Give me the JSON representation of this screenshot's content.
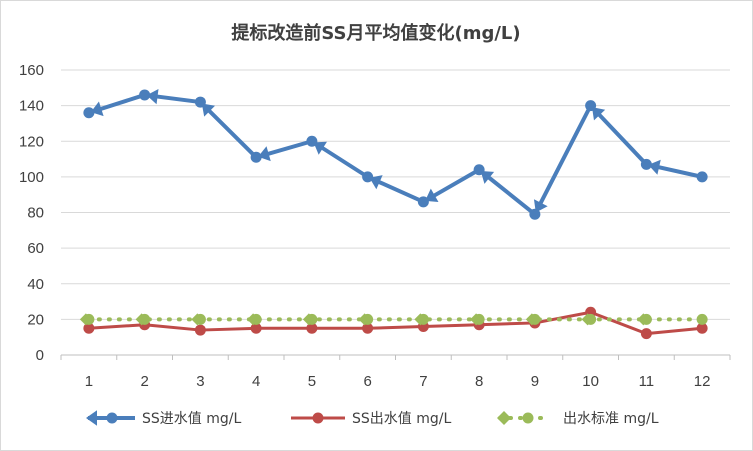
{
  "chart_data": {
    "type": "line",
    "title": "提标改造前SS月平均值变化(mg/L)",
    "xlabel": "",
    "ylabel": "",
    "categories": [
      "1",
      "2",
      "3",
      "4",
      "5",
      "6",
      "7",
      "8",
      "9",
      "10",
      "11",
      "12"
    ],
    "ylim": [
      0,
      160
    ],
    "yticks": [
      0,
      20,
      40,
      60,
      80,
      100,
      120,
      140,
      160
    ],
    "grid": true,
    "legend_position": "bottom",
    "series": [
      {
        "name": "SS进水值 mg/L",
        "color": "#4a7ebb",
        "values": [
          136,
          146,
          142,
          111,
          120,
          100,
          86,
          104,
          79,
          140,
          107,
          100
        ]
      },
      {
        "name": "SS出水值 mg/L",
        "color": "#be4b48",
        "values": [
          15,
          17,
          14,
          15,
          15,
          15,
          16,
          17,
          18,
          24,
          12,
          15
        ]
      },
      {
        "name": "出水标准 mg/L",
        "color": "#9bbb59",
        "values": [
          20,
          20,
          20,
          20,
          20,
          20,
          20,
          20,
          20,
          20,
          20,
          20
        ]
      }
    ]
  }
}
